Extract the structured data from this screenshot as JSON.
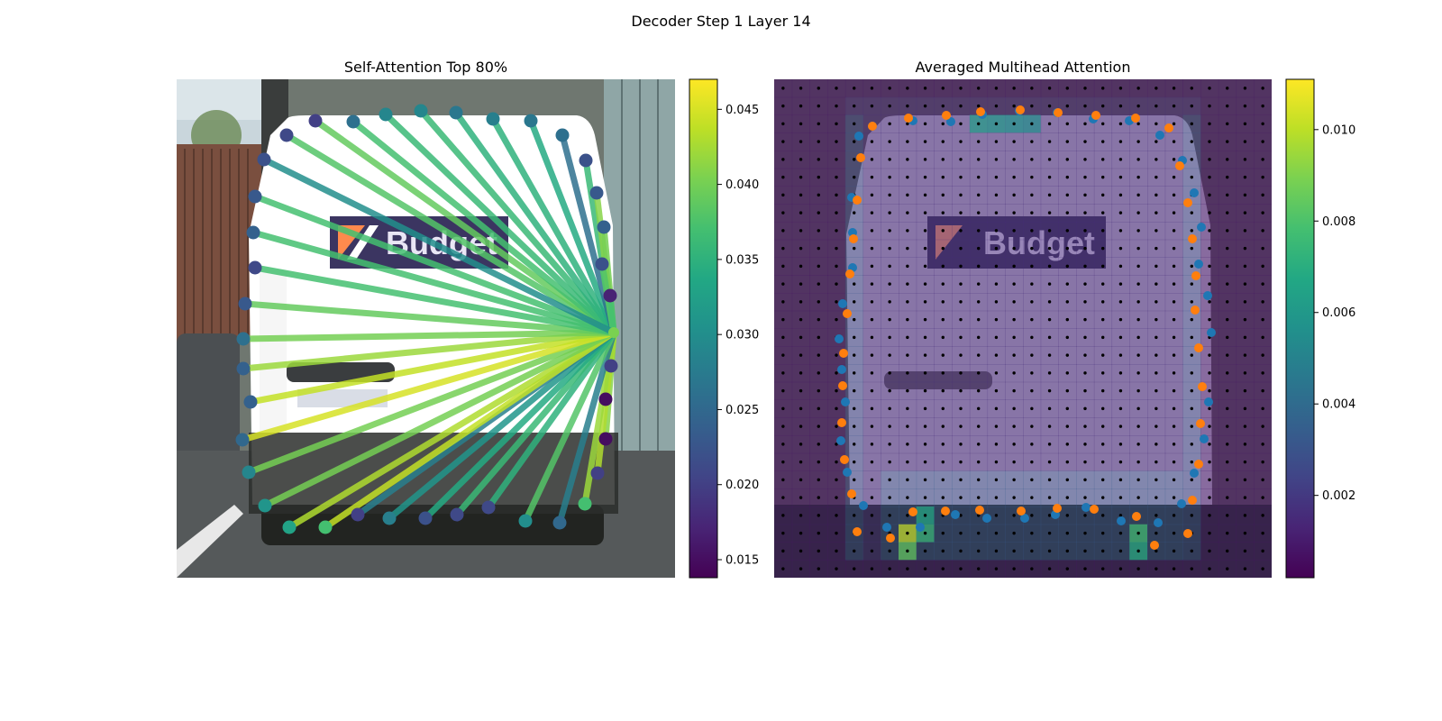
{
  "suptitle": "Decoder Step 1 Layer 14",
  "chart_data": [
    {
      "type": "scatter",
      "title": "Self-Attention Top 80%",
      "description_hidden": false,
      "image_content": "rear view of a white Budget rental van on a city street",
      "image_text": "Budget",
      "colormap": "viridis",
      "colorbar": {
        "min": 0.0138,
        "max": 0.047,
        "ticks": [
          0.015,
          0.02,
          0.025,
          0.03,
          0.035,
          0.04,
          0.045
        ]
      },
      "query_point": {
        "x": 681,
        "y": 369
      },
      "points": [
        {
          "x": 318,
          "y": 150,
          "v": 0.021,
          "w": 0.038
        },
        {
          "x": 350,
          "y": 134,
          "v": 0.02,
          "w": 0.039
        },
        {
          "x": 392,
          "y": 135,
          "v": 0.026,
          "w": 0.037
        },
        {
          "x": 428,
          "y": 127,
          "v": 0.029,
          "w": 0.036
        },
        {
          "x": 467,
          "y": 123,
          "v": 0.029,
          "w": 0.036
        },
        {
          "x": 506,
          "y": 125,
          "v": 0.027,
          "w": 0.035
        },
        {
          "x": 547,
          "y": 132,
          "v": 0.028,
          "w": 0.035
        },
        {
          "x": 589,
          "y": 134,
          "v": 0.027,
          "w": 0.034
        },
        {
          "x": 624,
          "y": 150,
          "v": 0.026,
          "w": 0.026
        },
        {
          "x": 650,
          "y": 178,
          "v": 0.022,
          "w": 0.036
        },
        {
          "x": 662,
          "y": 214,
          "v": 0.023,
          "w": 0.041
        },
        {
          "x": 670,
          "y": 252,
          "v": 0.024,
          "w": 0.04
        },
        {
          "x": 668,
          "y": 293,
          "v": 0.022,
          "w": 0.038
        },
        {
          "x": 677,
          "y": 328,
          "v": 0.017,
          "w": 0.037
        },
        {
          "x": 678,
          "y": 406,
          "v": 0.02,
          "w": 0.044
        },
        {
          "x": 672,
          "y": 443,
          "v": 0.015,
          "w": 0.046
        },
        {
          "x": 672,
          "y": 487,
          "v": 0.015,
          "w": 0.041
        },
        {
          "x": 663,
          "y": 525,
          "v": 0.02,
          "w": 0.043
        },
        {
          "x": 649,
          "y": 559,
          "v": 0.037,
          "w": 0.042
        },
        {
          "x": 621,
          "y": 580,
          "v": 0.025,
          "w": 0.028
        },
        {
          "x": 583,
          "y": 578,
          "v": 0.03,
          "w": 0.038
        },
        {
          "x": 542,
          "y": 563,
          "v": 0.021,
          "w": 0.035
        },
        {
          "x": 507,
          "y": 571,
          "v": 0.021,
          "w": 0.036
        },
        {
          "x": 472,
          "y": 575,
          "v": 0.022,
          "w": 0.034
        },
        {
          "x": 432,
          "y": 575,
          "v": 0.028,
          "w": 0.031
        },
        {
          "x": 397,
          "y": 571,
          "v": 0.02,
          "w": 0.028
        },
        {
          "x": 361,
          "y": 585,
          "v": 0.037,
          "w": 0.044
        },
        {
          "x": 321,
          "y": 585,
          "v": 0.033,
          "w": 0.043
        },
        {
          "x": 294,
          "y": 561,
          "v": 0.031,
          "w": 0.04
        },
        {
          "x": 276,
          "y": 524,
          "v": 0.029,
          "w": 0.04
        },
        {
          "x": 269,
          "y": 488,
          "v": 0.025,
          "w": 0.045
        },
        {
          "x": 278,
          "y": 446,
          "v": 0.024,
          "w": 0.044
        },
        {
          "x": 270,
          "y": 409,
          "v": 0.024,
          "w": 0.042
        },
        {
          "x": 270,
          "y": 376,
          "v": 0.026,
          "w": 0.04
        },
        {
          "x": 272,
          "y": 337,
          "v": 0.023,
          "w": 0.039
        },
        {
          "x": 283,
          "y": 297,
          "v": 0.021,
          "w": 0.037
        },
        {
          "x": 281,
          "y": 258,
          "v": 0.024,
          "w": 0.037
        },
        {
          "x": 283,
          "y": 218,
          "v": 0.023,
          "w": 0.037
        },
        {
          "x": 293,
          "y": 177,
          "v": 0.022,
          "w": 0.03
        }
      ]
    },
    {
      "type": "heatmap",
      "title": "Averaged Multihead Attention",
      "colormap": "viridis",
      "colorbar": {
        "min": 0.0002,
        "max": 0.0111,
        "ticks": [
          0.002,
          0.004,
          0.006,
          0.008,
          0.01
        ]
      },
      "grid": {
        "rows": 28,
        "cols": 28
      },
      "hotspots": [
        {
          "row": 25,
          "col": 7,
          "v": 0.0102
        },
        {
          "row": 25,
          "col": 8,
          "v": 0.0075
        },
        {
          "row": 24,
          "col": 8,
          "v": 0.0068
        },
        {
          "row": 26,
          "col": 7,
          "v": 0.0085
        },
        {
          "row": 25,
          "col": 20,
          "v": 0.0078
        },
        {
          "row": 26,
          "col": 20,
          "v": 0.007
        },
        {
          "row": 2,
          "col": 11,
          "v": 0.0062
        },
        {
          "row": 2,
          "col": 12,
          "v": 0.006
        },
        {
          "row": 2,
          "col": 13,
          "v": 0.0058
        },
        {
          "row": 2,
          "col": 14,
          "v": 0.0055
        }
      ],
      "series": [
        {
          "name": "",
          "color": "#1f77b4",
          "points": [
            [
              953,
              151
            ],
            [
              945,
              219
            ],
            [
              946,
              258
            ],
            [
              946,
              297
            ],
            [
              935,
              337
            ],
            [
              931,
              376
            ],
            [
              934,
              410
            ],
            [
              938,
              446
            ],
            [
              933,
              489
            ],
            [
              940,
              524
            ],
            [
              958,
              561
            ],
            [
              984,
              585
            ],
            [
              1021,
              585
            ],
            [
              1060,
              571
            ],
            [
              1095,
              575
            ],
            [
              1137,
              575
            ],
            [
              1171,
              571
            ],
            [
              1205,
              563
            ],
            [
              1244,
              578
            ],
            [
              1285,
              580
            ],
            [
              1311,
              559
            ],
            [
              1325,
              525
            ],
            [
              1336,
              487
            ],
            [
              1341,
              446
            ],
            [
              1344,
              369
            ],
            [
              1340,
              328
            ],
            [
              1330,
              293
            ],
            [
              1333,
              252
            ],
            [
              1325,
              214
            ],
            [
              1312,
              178
            ],
            [
              1287,
              150
            ],
            [
              1253,
              134
            ],
            [
              1213,
              132
            ],
            [
              1173,
              125
            ],
            [
              1131,
              123
            ],
            [
              1090,
              127
            ],
            [
              1055,
              135
            ],
            [
              1013,
              134
            ],
            [
              968,
              140
            ]
          ]
        },
        {
          "name": "",
          "color": "#ff7f0e",
          "points": [
            [
              968,
              140
            ],
            [
              955,
              175
            ],
            [
              951,
              222
            ],
            [
              947,
              265
            ],
            [
              943,
              304
            ],
            [
              940,
              348
            ],
            [
              936,
              392
            ],
            [
              935,
              428
            ],
            [
              934,
              469
            ],
            [
              937,
              510
            ],
            [
              945,
              548
            ],
            [
              951,
              590
            ],
            [
              988,
              597
            ],
            [
              1013,
              568
            ],
            [
              1049,
              567
            ],
            [
              1087,
              566
            ],
            [
              1133,
              567
            ],
            [
              1173,
              564
            ],
            [
              1214,
              565
            ],
            [
              1261,
              573
            ],
            [
              1281,
              605
            ],
            [
              1318,
              592
            ],
            [
              1323,
              555
            ],
            [
              1330,
              515
            ],
            [
              1332,
              470
            ],
            [
              1334,
              429
            ],
            [
              1330,
              386
            ],
            [
              1326,
              344
            ],
            [
              1327,
              306
            ],
            [
              1323,
              265
            ],
            [
              1318,
              225
            ],
            [
              1309,
              184
            ],
            [
              1297,
              142
            ],
            [
              1260,
              131
            ],
            [
              1216,
              128
            ],
            [
              1174,
              125
            ],
            [
              1132,
              122
            ],
            [
              1088,
              124
            ],
            [
              1050,
              128
            ],
            [
              1008,
              131
            ]
          ]
        }
      ]
    }
  ]
}
